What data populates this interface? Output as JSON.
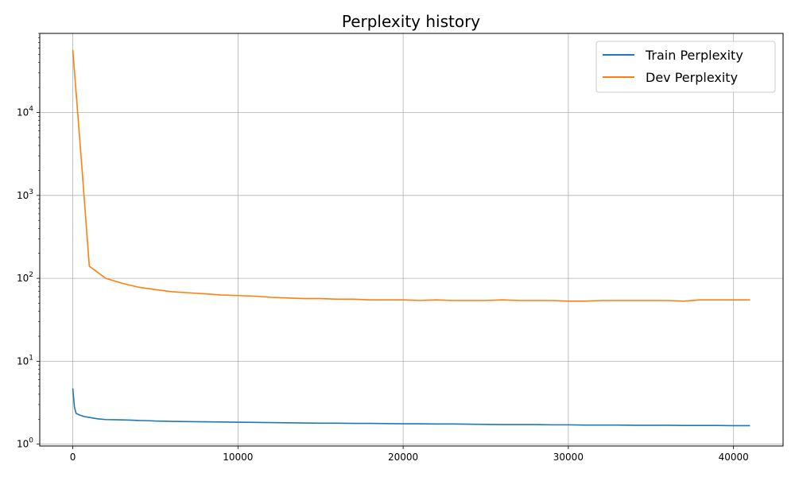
{
  "chart_data": {
    "type": "line",
    "title": "Perplexity history",
    "xlabel": "",
    "ylabel": "",
    "yscale": "log",
    "xlim": [
      -2000,
      43000
    ],
    "ylim": [
      0.95,
      90000
    ],
    "grid": true,
    "legend_position": "top-right",
    "x_ticks": [
      0,
      10000,
      20000,
      30000,
      40000
    ],
    "x_tick_labels": [
      "0",
      "10000",
      "20000",
      "30000",
      "40000"
    ],
    "y_ticks": [
      1,
      10,
      100,
      1000,
      10000
    ],
    "y_tick_labels": [
      {
        "base": "10",
        "exp": "0"
      },
      {
        "base": "10",
        "exp": "1"
      },
      {
        "base": "10",
        "exp": "2"
      },
      {
        "base": "10",
        "exp": "3"
      },
      {
        "base": "10",
        "exp": "4"
      }
    ],
    "series": [
      {
        "name": "Train Perplexity",
        "color": "#1f77b4",
        "x": [
          0,
          100,
          200,
          400,
          700,
          1000,
          1500,
          2000,
          2500,
          3000,
          3500,
          4000,
          4500,
          5000,
          6000,
          7000,
          8000,
          9000,
          10000,
          11000,
          12000,
          13000,
          14000,
          15000,
          16000,
          17000,
          18000,
          19000,
          20000,
          21000,
          22000,
          23000,
          24000,
          25000,
          26000,
          27000,
          28000,
          29000,
          30000,
          31000,
          32000,
          33000,
          34000,
          35000,
          36000,
          37000,
          38000,
          39000,
          40000,
          41000
        ],
        "y": [
          4.7,
          2.8,
          2.35,
          2.25,
          2.15,
          2.1,
          2.02,
          1.98,
          1.97,
          1.96,
          1.95,
          1.93,
          1.92,
          1.9,
          1.88,
          1.87,
          1.86,
          1.85,
          1.84,
          1.83,
          1.82,
          1.81,
          1.8,
          1.79,
          1.79,
          1.78,
          1.78,
          1.77,
          1.76,
          1.76,
          1.75,
          1.75,
          1.74,
          1.73,
          1.72,
          1.72,
          1.72,
          1.71,
          1.71,
          1.7,
          1.7,
          1.7,
          1.69,
          1.69,
          1.69,
          1.68,
          1.68,
          1.68,
          1.67,
          1.67
        ]
      },
      {
        "name": "Dev Perplexity",
        "color": "#ff7f0e",
        "x": [
          0,
          500,
          1000,
          2000,
          3000,
          4000,
          5000,
          6000,
          7000,
          8000,
          9000,
          10000,
          11000,
          12000,
          13000,
          14000,
          15000,
          16000,
          17000,
          18000,
          19000,
          20000,
          21000,
          22000,
          23000,
          24000,
          25000,
          26000,
          27000,
          28000,
          29000,
          30000,
          31000,
          32000,
          33000,
          34000,
          35000,
          36000,
          37000,
          38000,
          39000,
          40000,
          41000
        ],
        "y": [
          57000,
          3000,
          140,
          100,
          87,
          78,
          73,
          69,
          67,
          65,
          63,
          62,
          61,
          59,
          58,
          57,
          57,
          56,
          56,
          55,
          55,
          55,
          54,
          55,
          54,
          54,
          54,
          55,
          54,
          54,
          54,
          53,
          53,
          54,
          54,
          54,
          54,
          54,
          53,
          55,
          55,
          55,
          55
        ]
      }
    ]
  }
}
